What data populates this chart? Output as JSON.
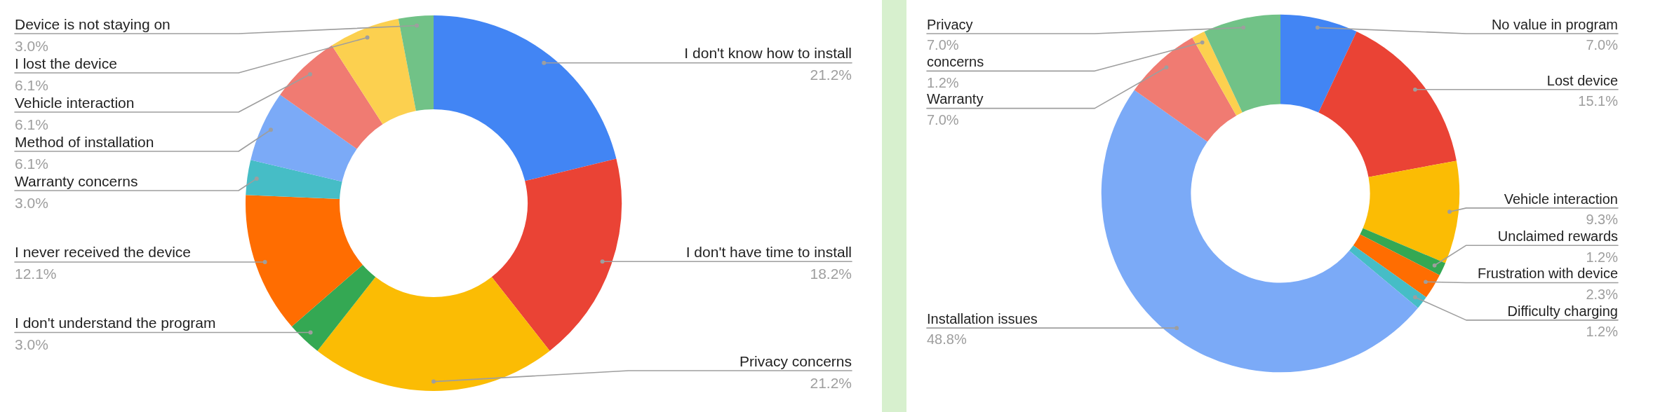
{
  "chart_data": [
    {
      "type": "donut",
      "categories": [
        "I don't know how to install",
        "I don't have time to install",
        "Privacy concerns",
        "I don't understand the program",
        "I never received the device",
        "Warranty concerns",
        "Method of installation",
        "Vehicle interaction",
        "I lost the device",
        "Device is not staying on"
      ],
      "values": [
        21.2,
        18.2,
        21.2,
        3.0,
        12.1,
        3.0,
        6.1,
        6.1,
        6.1,
        3.0
      ],
      "colors": [
        "#4285f4",
        "#ea4335",
        "#fbbc04",
        "#34a853",
        "#ff6d01",
        "#46bdc6",
        "#7baaf7",
        "#f07b72",
        "#fcd04f",
        "#71c287"
      ],
      "value_labels": [
        "21.2%",
        "18.2%",
        "21.2%",
        "3.0%",
        "12.1%",
        "3.0%",
        "6.1%",
        "6.1%",
        "6.1%",
        "3.0%"
      ]
    },
    {
      "type": "donut",
      "categories": [
        "No value in program",
        "Lost device",
        "Vehicle interaction",
        "Unclaimed rewards",
        "Frustration with device",
        "Difficulty charging",
        "Installation issues",
        "Warranty",
        "concerns",
        "Privacy"
      ],
      "values": [
        7.0,
        15.1,
        9.3,
        1.2,
        2.3,
        1.2,
        48.8,
        7.0,
        1.2,
        7.0
      ],
      "colors": [
        "#4285f4",
        "#ea4335",
        "#fbbc04",
        "#34a853",
        "#ff6d01",
        "#46bdc6",
        "#7baaf7",
        "#f07b72",
        "#fcd04f",
        "#71c287"
      ],
      "value_labels": [
        "7.0%",
        "15.1%",
        "9.3%",
        "1.2%",
        "2.3%",
        "1.2%",
        "48.8%",
        "7.0%",
        "1.2%",
        "7.0%"
      ]
    }
  ]
}
